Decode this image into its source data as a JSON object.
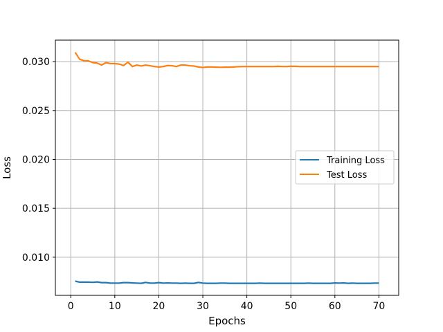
{
  "chart_data": {
    "type": "line",
    "title": "",
    "xlabel": "Epochs",
    "ylabel": "Loss",
    "xlim": [
      -3.5,
      74.5
    ],
    "ylim": [
      0.0061,
      0.0322
    ],
    "xticks": [
      0,
      10,
      20,
      30,
      40,
      50,
      60,
      70
    ],
    "xtick_labels": [
      "0",
      "10",
      "20",
      "30",
      "40",
      "50",
      "60",
      "70"
    ],
    "yticks": [
      0.01,
      0.015,
      0.02,
      0.025,
      0.03
    ],
    "ytick_labels": [
      "0.010",
      "0.015",
      "0.020",
      "0.025",
      "0.030"
    ],
    "grid": true,
    "legend_position": "right",
    "series": [
      {
        "name": "Training Loss",
        "color": "#1f77b4",
        "x": [
          1,
          2,
          3,
          4,
          5,
          6,
          7,
          8,
          9,
          10,
          11,
          12,
          13,
          14,
          15,
          16,
          17,
          18,
          19,
          20,
          21,
          22,
          23,
          24,
          25,
          26,
          27,
          28,
          29,
          30,
          31,
          32,
          33,
          34,
          35,
          36,
          37,
          38,
          39,
          40,
          41,
          42,
          43,
          44,
          45,
          46,
          47,
          48,
          49,
          50,
          51,
          52,
          53,
          54,
          55,
          56,
          57,
          58,
          59,
          60,
          61,
          62,
          63,
          64,
          65,
          66,
          67,
          68,
          69,
          70
        ],
        "values": [
          0.00755,
          0.00745,
          0.00745,
          0.00745,
          0.00743,
          0.00747,
          0.0074,
          0.0074,
          0.00735,
          0.00735,
          0.00735,
          0.0074,
          0.0074,
          0.00737,
          0.00735,
          0.00733,
          0.00742,
          0.00735,
          0.00735,
          0.0074,
          0.00735,
          0.00737,
          0.00735,
          0.00735,
          0.00733,
          0.00735,
          0.00733,
          0.00733,
          0.00742,
          0.00735,
          0.00733,
          0.00733,
          0.00733,
          0.00735,
          0.00735,
          0.00733,
          0.00733,
          0.00733,
          0.00733,
          0.00733,
          0.00733,
          0.00733,
          0.00735,
          0.00733,
          0.00733,
          0.00733,
          0.00733,
          0.00733,
          0.00733,
          0.00733,
          0.00733,
          0.00733,
          0.00733,
          0.00735,
          0.00733,
          0.00733,
          0.00733,
          0.00733,
          0.00733,
          0.00737,
          0.00735,
          0.00737,
          0.00733,
          0.00735,
          0.00733,
          0.00733,
          0.00733,
          0.00733,
          0.00735,
          0.00735
        ]
      },
      {
        "name": "Test Loss",
        "color": "#ff7f0e",
        "x": [
          1,
          2,
          3,
          4,
          5,
          6,
          7,
          8,
          9,
          10,
          11,
          12,
          13,
          14,
          15,
          16,
          17,
          18,
          19,
          20,
          21,
          22,
          23,
          24,
          25,
          26,
          27,
          28,
          29,
          30,
          31,
          32,
          33,
          34,
          35,
          36,
          37,
          38,
          39,
          40,
          41,
          42,
          43,
          44,
          45,
          46,
          47,
          48,
          49,
          50,
          51,
          52,
          53,
          54,
          55,
          56,
          57,
          58,
          59,
          60,
          61,
          62,
          63,
          64,
          65,
          66,
          67,
          68,
          69,
          70
        ],
        "values": [
          0.03095,
          0.03025,
          0.0301,
          0.03008,
          0.0299,
          0.02985,
          0.02965,
          0.0299,
          0.0298,
          0.0298,
          0.02975,
          0.0296,
          0.02995,
          0.0295,
          0.02965,
          0.02955,
          0.02965,
          0.02958,
          0.0295,
          0.02945,
          0.0295,
          0.0296,
          0.02958,
          0.0295,
          0.02965,
          0.02965,
          0.02958,
          0.02955,
          0.02945,
          0.0294,
          0.02945,
          0.02945,
          0.02943,
          0.02942,
          0.02943,
          0.02943,
          0.02945,
          0.02948,
          0.0295,
          0.0295,
          0.0295,
          0.0295,
          0.0295,
          0.0295,
          0.0295,
          0.0295,
          0.02952,
          0.0295,
          0.0295,
          0.02952,
          0.02952,
          0.0295,
          0.0295,
          0.0295,
          0.0295,
          0.0295,
          0.0295,
          0.0295,
          0.0295,
          0.0295,
          0.0295,
          0.0295,
          0.0295,
          0.0295,
          0.0295,
          0.0295,
          0.0295,
          0.0295,
          0.0295,
          0.0295
        ]
      }
    ]
  }
}
